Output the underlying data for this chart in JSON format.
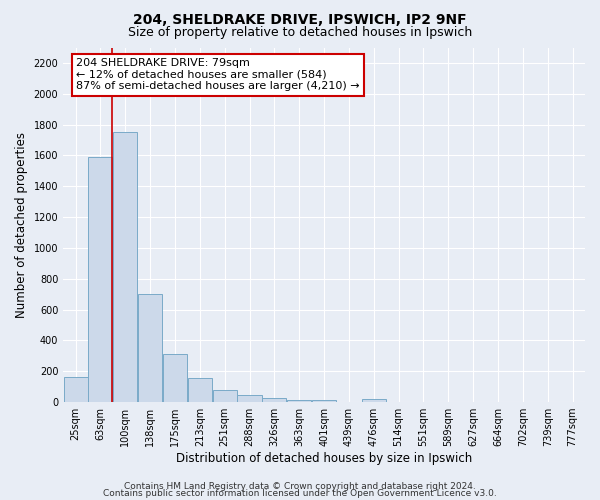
{
  "title": "204, SHELDRAKE DRIVE, IPSWICH, IP2 9NF",
  "subtitle": "Size of property relative to detached houses in Ipswich",
  "xlabel": "Distribution of detached houses by size in Ipswich",
  "ylabel": "Number of detached properties",
  "bar_labels": [
    "25sqm",
    "63sqm",
    "100sqm",
    "138sqm",
    "175sqm",
    "213sqm",
    "251sqm",
    "288sqm",
    "326sqm",
    "363sqm",
    "401sqm",
    "439sqm",
    "476sqm",
    "514sqm",
    "551sqm",
    "589sqm",
    "627sqm",
    "664sqm",
    "702sqm",
    "739sqm",
    "777sqm"
  ],
  "bar_values": [
    160,
    1590,
    1750,
    700,
    315,
    155,
    80,
    45,
    25,
    15,
    15,
    0,
    20,
    0,
    0,
    0,
    0,
    0,
    0,
    0,
    0
  ],
  "bar_color": "#ccd9ea",
  "bar_edge_color": "#7aaac8",
  "bar_edge_width": 0.7,
  "red_line_x": 1.48,
  "annotation_text": "204 SHELDRAKE DRIVE: 79sqm\n← 12% of detached houses are smaller (584)\n87% of semi-detached houses are larger (4,210) →",
  "annotation_box_color": "white",
  "annotation_box_edge": "#cc0000",
  "ylim": [
    0,
    2300
  ],
  "yticks": [
    0,
    200,
    400,
    600,
    800,
    1000,
    1200,
    1400,
    1600,
    1800,
    2000,
    2200
  ],
  "footer1": "Contains HM Land Registry data © Crown copyright and database right 2024.",
  "footer2": "Contains public sector information licensed under the Open Government Licence v3.0.",
  "bg_color": "#e8edf5",
  "plot_bg_color": "#e8edf5",
  "grid_color": "white",
  "title_fontsize": 10,
  "subtitle_fontsize": 9,
  "axis_label_fontsize": 8.5,
  "tick_fontsize": 7,
  "footer_fontsize": 6.5,
  "annot_fontsize": 8
}
